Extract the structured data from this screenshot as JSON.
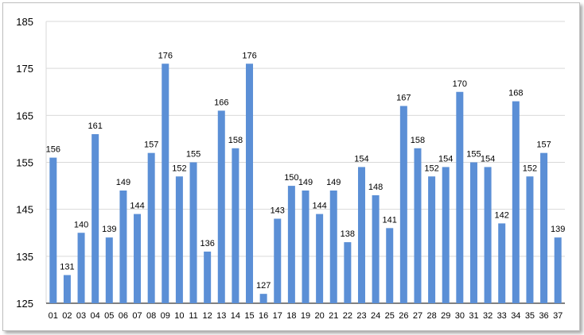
{
  "chart_data": {
    "type": "bar",
    "title": "",
    "xlabel": "",
    "ylabel": "",
    "ylim": [
      125,
      185
    ],
    "yticks": [
      125,
      135,
      145,
      155,
      165,
      175,
      185
    ],
    "grid": true,
    "legend": "none",
    "bar_color": "#5b8fd6",
    "categories": [
      "01",
      "02",
      "03",
      "04",
      "05",
      "06",
      "07",
      "08",
      "09",
      "10",
      "11",
      "12",
      "13",
      "14",
      "15",
      "16",
      "17",
      "18",
      "19",
      "20",
      "21",
      "22",
      "23",
      "24",
      "25",
      "26",
      "27",
      "28",
      "29",
      "30",
      "31",
      "32",
      "33",
      "34",
      "35",
      "36",
      "37"
    ],
    "values": [
      156,
      131,
      140,
      161,
      139,
      149,
      144,
      157,
      176,
      152,
      155,
      136,
      166,
      158,
      176,
      127,
      143,
      150,
      149,
      144,
      149,
      138,
      154,
      148,
      141,
      167,
      158,
      152,
      154,
      170,
      155,
      154,
      142,
      168,
      152,
      157,
      139
    ]
  }
}
